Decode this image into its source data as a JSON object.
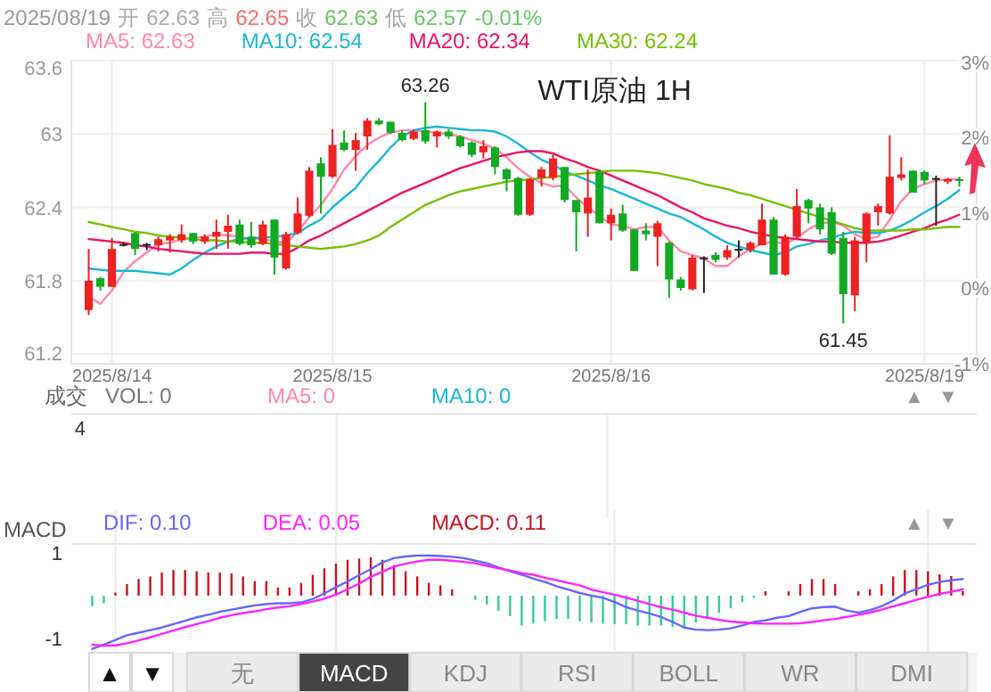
{
  "chart_data": [
    {
      "type": "candlestick",
      "title": "WTI原油 1H",
      "categories": [
        null,
        null,
        "2025/8/14",
        null,
        null,
        null,
        null,
        null,
        null,
        null,
        null,
        null,
        null,
        null,
        null,
        null,
        null,
        null,
        null,
        null,
        null,
        "2025/8/15",
        null,
        null,
        null,
        null,
        null,
        null,
        null,
        null,
        null,
        null,
        null,
        null,
        null,
        null,
        null,
        null,
        null,
        null,
        null,
        null,
        null,
        null,
        null,
        "2025/8/16",
        null,
        null,
        null,
        null,
        null,
        null,
        null,
        null,
        null,
        null,
        null,
        null,
        null,
        null,
        null,
        null,
        null,
        null,
        null,
        null,
        null,
        null,
        null,
        null,
        null,
        null,
        "2025/8/19",
        null,
        null,
        null
      ],
      "ohlc": [
        [
          61.56,
          62.06,
          61.52,
          61.8
        ],
        [
          61.82,
          61.83,
          61.72,
          61.75
        ],
        [
          61.75,
          62.15,
          61.75,
          62.06
        ],
        [
          62.1,
          62.11,
          62.08,
          62.1
        ],
        [
          62.19,
          62.2,
          62.01,
          62.06
        ],
        [
          62.1,
          62.11,
          62.05,
          62.1
        ],
        [
          62.09,
          62.16,
          62.04,
          62.14
        ],
        [
          62.13,
          62.18,
          62.03,
          62.16
        ],
        [
          62.13,
          62.26,
          62.11,
          62.18
        ],
        [
          62.19,
          62.19,
          62.1,
          62.12
        ],
        [
          62.12,
          62.18,
          62.1,
          62.16
        ],
        [
          62.16,
          62.3,
          62.06,
          62.2
        ],
        [
          62.2,
          62.34,
          62.06,
          62.25
        ],
        [
          62.26,
          62.3,
          62.09,
          62.1
        ],
        [
          62.16,
          62.28,
          62.07,
          62.09
        ],
        [
          62.1,
          62.29,
          62.09,
          62.26
        ],
        [
          62.3,
          62.3,
          61.85,
          61.99
        ],
        [
          61.9,
          62.2,
          61.89,
          62.18
        ],
        [
          62.19,
          62.48,
          62.18,
          62.35
        ],
        [
          62.33,
          62.73,
          62.32,
          62.7
        ],
        [
          62.76,
          62.81,
          62.35,
          62.65
        ],
        [
          62.65,
          63.04,
          62.64,
          62.91
        ],
        [
          62.93,
          63.03,
          62.86,
          62.87
        ],
        [
          62.87,
          63.01,
          62.7,
          62.95
        ],
        [
          62.98,
          63.13,
          62.87,
          63.11
        ],
        [
          63.11,
          63.13,
          63.07,
          63.08
        ],
        [
          63.1,
          63.1,
          63.0,
          63.01
        ],
        [
          63.01,
          63.03,
          62.94,
          62.95
        ],
        [
          62.96,
          63.04,
          62.95,
          63.02
        ],
        [
          63.03,
          63.26,
          62.92,
          62.94
        ],
        [
          62.98,
          63.03,
          62.89,
          63.02
        ],
        [
          63.02,
          63.04,
          62.96,
          62.98
        ],
        [
          62.98,
          62.99,
          62.89,
          62.9
        ],
        [
          62.93,
          62.94,
          62.81,
          62.83
        ],
        [
          62.85,
          62.95,
          62.8,
          62.9
        ],
        [
          62.89,
          62.9,
          62.67,
          62.73
        ],
        [
          62.71,
          62.72,
          62.53,
          62.63
        ],
        [
          62.64,
          62.65,
          62.33,
          62.34
        ],
        [
          62.34,
          62.64,
          62.33,
          62.63
        ],
        [
          62.64,
          62.73,
          62.57,
          62.71
        ],
        [
          62.64,
          62.85,
          62.62,
          62.8
        ],
        [
          62.73,
          62.73,
          62.44,
          62.46
        ],
        [
          62.46,
          62.46,
          62.04,
          62.36
        ],
        [
          62.35,
          62.71,
          62.16,
          62.48
        ],
        [
          62.69,
          62.71,
          62.27,
          62.27
        ],
        [
          62.27,
          62.39,
          62.13,
          62.34
        ],
        [
          62.35,
          62.42,
          62.2,
          62.21
        ],
        [
          62.22,
          62.22,
          61.88,
          61.88
        ],
        [
          62.21,
          62.27,
          62.13,
          62.18
        ],
        [
          62.16,
          62.29,
          61.92,
          62.27
        ],
        [
          62.11,
          62.12,
          61.66,
          61.81
        ],
        [
          61.81,
          61.83,
          61.72,
          61.74
        ],
        [
          61.73,
          62.01,
          61.72,
          61.99
        ],
        [
          61.99,
          62.0,
          61.7,
          61.99
        ],
        [
          62.01,
          62.03,
          61.95,
          61.97
        ],
        [
          61.99,
          62.09,
          61.97,
          62.05
        ],
        [
          62.06,
          62.13,
          61.99,
          62.06
        ],
        [
          62.05,
          62.12,
          62.03,
          62.11
        ],
        [
          62.09,
          62.43,
          62.09,
          62.3
        ],
        [
          62.3,
          62.32,
          61.85,
          61.85
        ],
        [
          61.85,
          62.18,
          61.84,
          62.16
        ],
        [
          62.16,
          62.55,
          62.15,
          62.41
        ],
        [
          62.46,
          62.47,
          62.27,
          62.39
        ],
        [
          62.4,
          62.43,
          62.18,
          62.22
        ],
        [
          62.36,
          62.4,
          62.01,
          62.02
        ],
        [
          62.15,
          62.2,
          61.45,
          61.69
        ],
        [
          61.68,
          62.16,
          61.55,
          62.13
        ],
        [
          62.11,
          62.36,
          61.95,
          62.35
        ],
        [
          62.36,
          62.43,
          62.25,
          62.41
        ],
        [
          62.35,
          62.99,
          62.34,
          62.65
        ],
        [
          62.64,
          62.81,
          62.62,
          62.67
        ],
        [
          62.7,
          62.7,
          62.52,
          62.52
        ],
        [
          62.69,
          62.7,
          62.59,
          62.62
        ],
        [
          62.64,
          62.66,
          62.25,
          62.64
        ],
        [
          62.61,
          62.64,
          62.59,
          62.63
        ],
        [
          62.63,
          62.65,
          62.57,
          62.63
        ]
      ],
      "colors": [
        "#ee2222",
        "#11aa22",
        "#ee2222",
        "#222222",
        "#11aa22",
        "#222222",
        "#ee2222",
        "#ee2222",
        "#ee2222",
        "#11aa22",
        "#ee2222",
        "#ee2222",
        "#ee2222",
        "#11aa22",
        "#11aa22",
        "#ee2222",
        "#11aa22",
        "#ee2222",
        "#ee2222",
        "#ee2222",
        "#11aa22",
        "#ee2222",
        "#11aa22",
        "#ee2222",
        "#ee2222",
        "#11aa22",
        "#11aa22",
        "#11aa22",
        "#ee2222",
        "#11aa22",
        "#ee2222",
        "#11aa22",
        "#11aa22",
        "#11aa22",
        "#ee2222",
        "#11aa22",
        "#11aa22",
        "#11aa22",
        "#ee2222",
        "#ee2222",
        "#ee2222",
        "#11aa22",
        "#11aa22",
        "#ee2222",
        "#11aa22",
        "#ee2222",
        "#11aa22",
        "#11aa22",
        "#11aa22",
        "#ee2222",
        "#11aa22",
        "#11aa22",
        "#ee2222",
        "#222222",
        "#11aa22",
        "#ee2222",
        "#222222",
        "#ee2222",
        "#ee2222",
        "#11aa22",
        "#ee2222",
        "#ee2222",
        "#11aa22",
        "#11aa22",
        "#11aa22",
        "#11aa22",
        "#ee2222",
        "#ee2222",
        "#ee2222",
        "#ee2222",
        "#ee2222",
        "#11aa22",
        "#11aa22",
        "#222222",
        "#ee2222",
        "#11aa22"
      ],
      "series": [
        {
          "name": "MA5: 62.63",
          "type": "line",
          "color": "#ff88aa",
          "values": [
            61.67,
            61.61,
            61.72,
            61.87,
            61.96,
            62.03,
            62.1,
            62.11,
            62.14,
            62.15,
            62.16,
            62.18,
            62.17,
            62.16,
            62.14,
            62.14,
            62.12,
            62.11,
            62.2,
            62.32,
            62.42,
            62.55,
            62.71,
            62.82,
            62.91,
            62.97,
            63.01,
            63.03,
            63.03,
            63.02,
            63.01,
            63.0,
            62.98,
            62.95,
            62.92,
            62.88,
            62.81,
            62.72,
            62.65,
            62.6,
            62.57,
            62.58,
            62.48,
            62.4,
            62.33,
            62.26,
            62.25,
            62.22,
            62.24,
            62.24,
            62.13,
            62.04,
            62.01,
            61.98,
            61.92,
            61.92,
            62.0,
            62.06,
            62.1,
            62.12,
            62.1,
            62.15,
            62.22,
            62.27,
            62.28,
            62.25,
            62.18,
            62.14,
            62.16,
            62.3,
            62.45,
            62.55,
            62.59,
            62.62,
            62.63,
            62.63
          ]
        },
        {
          "name": "MA10: 62.54",
          "type": "line",
          "color": "#17b8da",
          "values": [
            61.9,
            61.89,
            61.88,
            61.88,
            61.88,
            61.87,
            61.86,
            61.85,
            61.9,
            61.97,
            62.03,
            62.08,
            62.12,
            62.14,
            62.15,
            62.15,
            62.16,
            62.17,
            62.19,
            62.25,
            62.3,
            62.4,
            62.48,
            62.56,
            62.68,
            62.78,
            62.89,
            62.98,
            63.03,
            63.05,
            63.06,
            63.05,
            63.04,
            63.03,
            63.03,
            63.02,
            62.98,
            62.92,
            62.85,
            62.79,
            62.75,
            62.69,
            62.66,
            62.62,
            62.58,
            62.55,
            62.51,
            62.47,
            62.43,
            62.39,
            62.35,
            62.32,
            62.27,
            62.22,
            62.16,
            62.11,
            62.08,
            62.05,
            62.03,
            62.01,
            62.03,
            62.08,
            62.1,
            62.13,
            62.15,
            62.18,
            62.2,
            62.19,
            62.19,
            62.21,
            62.25,
            62.3,
            62.36,
            62.41,
            62.47,
            62.54
          ]
        },
        {
          "name": "MA20: 62.34",
          "type": "line",
          "color": "#ee1166",
          "values": [
            62.14,
            62.13,
            62.12,
            62.11,
            62.09,
            62.08,
            62.06,
            62.05,
            62.04,
            62.03,
            62.02,
            62.02,
            62.02,
            62.02,
            62.03,
            62.03,
            62.02,
            62.02,
            62.07,
            62.13,
            62.17,
            62.22,
            62.27,
            62.32,
            62.37,
            62.42,
            62.47,
            62.52,
            62.56,
            62.6,
            62.64,
            62.68,
            62.72,
            62.75,
            62.78,
            62.81,
            62.83,
            62.85,
            62.86,
            62.86,
            62.84,
            62.8,
            62.77,
            62.73,
            62.7,
            62.66,
            62.62,
            62.58,
            62.54,
            62.5,
            62.45,
            62.4,
            62.36,
            62.31,
            62.28,
            62.25,
            62.23,
            62.2,
            62.18,
            62.16,
            62.15,
            62.14,
            62.13,
            62.12,
            62.12,
            62.11,
            62.11,
            62.11,
            62.12,
            62.14,
            62.17,
            62.2,
            62.23,
            62.27,
            62.3,
            62.34
          ]
        },
        {
          "name": "MA30: 62.24",
          "type": "line",
          "color": "#77c000",
          "values": [
            62.28,
            62.26,
            62.24,
            62.22,
            62.2,
            62.19,
            62.17,
            62.16,
            62.15,
            62.14,
            62.13,
            62.13,
            62.12,
            62.12,
            62.11,
            62.11,
            62.1,
            62.09,
            62.08,
            62.07,
            62.06,
            62.07,
            62.08,
            62.1,
            62.13,
            62.17,
            62.24,
            62.3,
            62.36,
            62.42,
            62.46,
            62.5,
            62.53,
            62.55,
            62.57,
            62.59,
            62.61,
            62.62,
            62.63,
            62.64,
            62.65,
            62.66,
            62.67,
            62.68,
            62.69,
            62.7,
            62.7,
            62.7,
            62.69,
            62.68,
            62.66,
            62.64,
            62.62,
            62.59,
            62.57,
            62.55,
            62.52,
            62.5,
            62.47,
            62.44,
            62.41,
            62.38,
            62.35,
            62.32,
            62.29,
            62.26,
            62.23,
            62.21,
            62.21,
            62.21,
            62.21,
            62.22,
            62.22,
            62.23,
            62.24,
            62.24
          ]
        }
      ],
      "ylim": [
        61.12,
        63.6
      ],
      "yticks": [
        61.2,
        61.8,
        62.4,
        63,
        63.6
      ],
      "y2lim": [
        -1.0,
        3.02
      ],
      "y2ticks": [
        {
          "value": 3,
          "label": "3%"
        },
        {
          "value": 2,
          "label": "2%"
        },
        {
          "value": 1,
          "label": "1%"
        },
        {
          "value": 0,
          "label": "0%"
        },
        {
          "value": -1,
          "label": "-1%"
        }
      ],
      "grid": true,
      "legend": "top",
      "annotations": [
        "2025/08/19",
        "开",
        "62.63",
        "高",
        "62.65",
        "收",
        "62.63",
        "低",
        "62.57",
        "-0.01%",
        {
          "text": "63.26",
          "y": 63.26
        },
        {
          "text": "61.45",
          "y": 61.45
        }
      ]
    },
    {
      "type": "other",
      "annotations": [
        "成交",
        "VOL: 0",
        "MA5: 0",
        "MA10: 0",
        "4",
        "▲",
        "▼"
      ]
    },
    {
      "type": "bar",
      "ylabel": "MACD",
      "categories": [
        null,
        null,
        "2025/8/14",
        null,
        null,
        null,
        null,
        null,
        null,
        null,
        null,
        null,
        null,
        null,
        null,
        null,
        null,
        null,
        null,
        null,
        null,
        "2025/8/15",
        null,
        null,
        null,
        null,
        null,
        null,
        null,
        null,
        null,
        null,
        null,
        null,
        null,
        null,
        null,
        null,
        null,
        null,
        null,
        null,
        null,
        null,
        null,
        "2025/8/16",
        null,
        null,
        null,
        null,
        null,
        null,
        null,
        null,
        null,
        null,
        null,
        null,
        null,
        null,
        null,
        null,
        null,
        null,
        null,
        null,
        null,
        null,
        null,
        null,
        null,
        null,
        "2025/8/19",
        null,
        null,
        null
      ],
      "series": [
        {
          "name": "DIF: 0.10",
          "type": "line",
          "color": "#6666ff",
          "values": [
            -1.25,
            -1.15,
            -1.04,
            -0.93,
            -0.87,
            -0.81,
            -0.75,
            -0.67,
            -0.59,
            -0.51,
            -0.45,
            -0.38,
            -0.33,
            -0.28,
            -0.23,
            -0.2,
            -0.18,
            -0.18,
            -0.16,
            -0.08,
            0.05,
            0.2,
            0.33,
            0.48,
            0.62,
            0.78,
            0.88,
            0.92,
            0.94,
            0.94,
            0.93,
            0.91,
            0.88,
            0.82,
            0.76,
            0.66,
            0.57,
            0.49,
            0.4,
            0.32,
            0.22,
            0.14,
            0.06,
            0.0,
            -0.05,
            -0.15,
            -0.27,
            -0.35,
            -0.42,
            -0.5,
            -0.62,
            -0.75,
            -0.8,
            -0.81,
            -0.8,
            -0.77,
            -0.7,
            -0.62,
            -0.58,
            -0.52,
            -0.48,
            -0.38,
            -0.3,
            -0.27,
            -0.26,
            -0.35,
            -0.4,
            -0.34,
            -0.25,
            -0.12,
            0.05,
            0.15,
            0.25,
            0.32,
            0.36,
            0.39
          ]
        },
        {
          "name": "DEA: 0.05",
          "type": "line",
          "color": "#ff22ff",
          "values": [
            -1.15,
            -1.18,
            -1.17,
            -1.12,
            -1.05,
            -0.98,
            -0.9,
            -0.82,
            -0.74,
            -0.67,
            -0.6,
            -0.52,
            -0.46,
            -0.41,
            -0.37,
            -0.32,
            -0.28,
            -0.25,
            -0.2,
            -0.14,
            -0.07,
            0.02,
            0.15,
            0.28,
            0.44,
            0.56,
            0.68,
            0.75,
            0.8,
            0.84,
            0.84,
            0.82,
            0.79,
            0.76,
            0.7,
            0.64,
            0.59,
            0.53,
            0.49,
            0.42,
            0.36,
            0.3,
            0.24,
            0.14,
            0.08,
            0.02,
            -0.05,
            -0.12,
            -0.2,
            -0.27,
            -0.33,
            -0.4,
            -0.47,
            -0.52,
            -0.57,
            -0.61,
            -0.63,
            -0.65,
            -0.66,
            -0.66,
            -0.66,
            -0.65,
            -0.62,
            -0.58,
            -0.55,
            -0.5,
            -0.45,
            -0.4,
            -0.33,
            -0.25,
            -0.18,
            -0.1,
            -0.03,
            0.04,
            0.09,
            0.15
          ]
        },
        {
          "name": "MACD: 0.11",
          "type": "bar",
          "values": [
            -0.25,
            -0.18,
            0.07,
            0.27,
            0.39,
            0.45,
            0.54,
            0.6,
            0.6,
            0.57,
            0.54,
            0.54,
            0.52,
            0.45,
            0.34,
            0.34,
            0.19,
            0.19,
            0.3,
            0.49,
            0.64,
            0.75,
            0.84,
            0.87,
            0.9,
            0.84,
            0.72,
            0.57,
            0.45,
            0.3,
            0.24,
            0.15,
            null,
            -0.1,
            -0.21,
            -0.36,
            -0.48,
            -0.7,
            -0.66,
            -0.6,
            -0.55,
            -0.55,
            -0.6,
            -0.63,
            -0.66,
            -0.67,
            -0.67,
            -0.7,
            -0.7,
            -0.7,
            -0.73,
            -0.78,
            -0.63,
            -0.51,
            -0.4,
            -0.3,
            -0.15,
            -0.05,
            0.1,
            null,
            0.1,
            0.27,
            0.39,
            0.39,
            0.27,
            null,
            0.1,
            0.15,
            0.27,
            0.45,
            0.6,
            0.6,
            0.57,
            0.5,
            0.46,
            0.11
          ],
          "color": "#cc1122",
          "colors": [
            "#33cc99",
            "#33cc99",
            "#cc1122",
            "#cc1122",
            "#cc1122",
            "#cc1122",
            "#cc1122",
            "#cc1122",
            "#cc1122",
            "#cc1122",
            "#cc1122",
            "#cc1122",
            "#cc1122",
            "#cc1122",
            "#cc1122",
            "#cc1122",
            "#cc1122",
            "#cc1122",
            "#cc1122",
            "#cc1122",
            "#cc1122",
            "#cc1122",
            "#cc1122",
            "#cc1122",
            "#cc1122",
            "#cc1122",
            "#cc1122",
            "#cc1122",
            "#cc1122",
            "#cc1122",
            "#cc1122",
            "#cc1122",
            null,
            "#33cc99",
            "#33cc99",
            "#33cc99",
            "#33cc99",
            "#33cc99",
            "#33cc99",
            "#33cc99",
            "#33cc99",
            "#33cc99",
            "#33cc99",
            "#33cc99",
            "#33cc99",
            "#33cc99",
            "#33cc99",
            "#33cc99",
            "#33cc99",
            "#33cc99",
            "#33cc99",
            "#33cc99",
            "#33cc99",
            "#33cc99",
            "#33cc99",
            "#33cc99",
            "#33cc99",
            "#33cc99",
            "#cc1122",
            null,
            "#cc1122",
            "#cc1122",
            "#cc1122",
            "#cc1122",
            "#cc1122",
            null,
            "#cc1122",
            "#cc1122",
            "#cc1122",
            "#cc1122",
            "#cc1122",
            "#cc1122",
            "#cc1122",
            "#cc1122",
            "#cc1122",
            "#cc1122"
          ]
        }
      ],
      "ylim": [
        -1.3,
        1.17
      ],
      "yticks": [
        1,
        -1
      ],
      "grid": "x",
      "legend": "top",
      "tick_labels": "y",
      "annotations": [
        "▲",
        "▼"
      ]
    },
    {
      "type": "other",
      "annotations": [
        "▲",
        "▼",
        "无",
        "MACD",
        "KDJ",
        "RSI",
        "BOLL",
        "WR",
        "DMI"
      ]
    }
  ]
}
